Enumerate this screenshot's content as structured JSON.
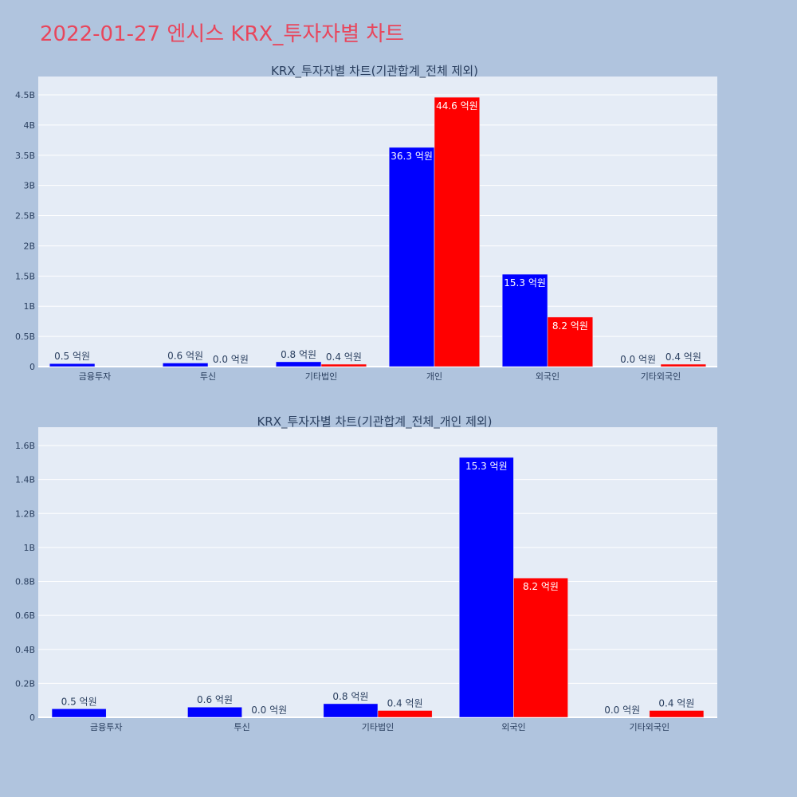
{
  "page_title": "2022-01-27 엔시스 KRX_투자자별 차트",
  "colors": {
    "buy": "#0000ff",
    "sell": "#ff0000",
    "page_bg": "#b0c4de",
    "plot_bg": "#e5ecf6",
    "title": "#e8465c"
  },
  "chart_data": [
    {
      "type": "bar",
      "title": "KRX_투자자별 차트(기관합계_전체 제외)",
      "xlabel": "",
      "ylabel": "",
      "categories": [
        "금융투자",
        "투신",
        "기타법인",
        "개인",
        "외국인",
        "기타외국인"
      ],
      "series": [
        {
          "values": [
            50000000,
            60000000,
            80000000,
            3630000000,
            1530000000,
            0
          ],
          "labels": [
            "0.5 억원",
            "0.6 억원",
            "0.8 억원",
            "36.3 억원",
            "15.3 억원",
            "0.0 억원"
          ]
        },
        {
          "values": [
            0,
            0,
            40000000,
            4460000000,
            820000000,
            40000000
          ],
          "labels": [
            "",
            "0.0 억원",
            "0.4 억원",
            "44.6 억원",
            "8.2 억원",
            "0.4 억원"
          ]
        }
      ],
      "ylim": [
        0,
        4500000000
      ],
      "yticks": [
        0,
        500000000,
        1000000000,
        1500000000,
        2000000000,
        2500000000,
        3000000000,
        3500000000,
        4000000000,
        4500000000
      ],
      "ytick_labels": [
        "0",
        "0.5B",
        "1B",
        "1.5B",
        "2B",
        "2.5B",
        "3B",
        "3.5B",
        "4B",
        "4.5B"
      ],
      "grid": true
    },
    {
      "type": "bar",
      "title": "KRX_투자자별 차트(기관합계_전체_개인 제외)",
      "xlabel": "",
      "ylabel": "",
      "categories": [
        "금융투자",
        "투신",
        "기타법인",
        "외국인",
        "기타외국인"
      ],
      "series": [
        {
          "values": [
            50000000,
            60000000,
            80000000,
            1530000000,
            0
          ],
          "labels": [
            "0.5 억원",
            "0.6 억원",
            "0.8 억원",
            "15.3 억원",
            "0.0 억원"
          ]
        },
        {
          "values": [
            0,
            0,
            40000000,
            820000000,
            40000000
          ],
          "labels": [
            "",
            "0.0 억원",
            "0.4 억원",
            "8.2 억원",
            "0.4 억원"
          ]
        }
      ],
      "ylim": [
        0,
        1600000000
      ],
      "yticks": [
        0,
        200000000,
        400000000,
        600000000,
        800000000,
        1000000000,
        1200000000,
        1400000000,
        1600000000
      ],
      "ytick_labels": [
        "0",
        "0.2B",
        "0.4B",
        "0.6B",
        "0.8B",
        "1B",
        "1.2B",
        "1.4B",
        "1.6B"
      ],
      "grid": true
    }
  ]
}
